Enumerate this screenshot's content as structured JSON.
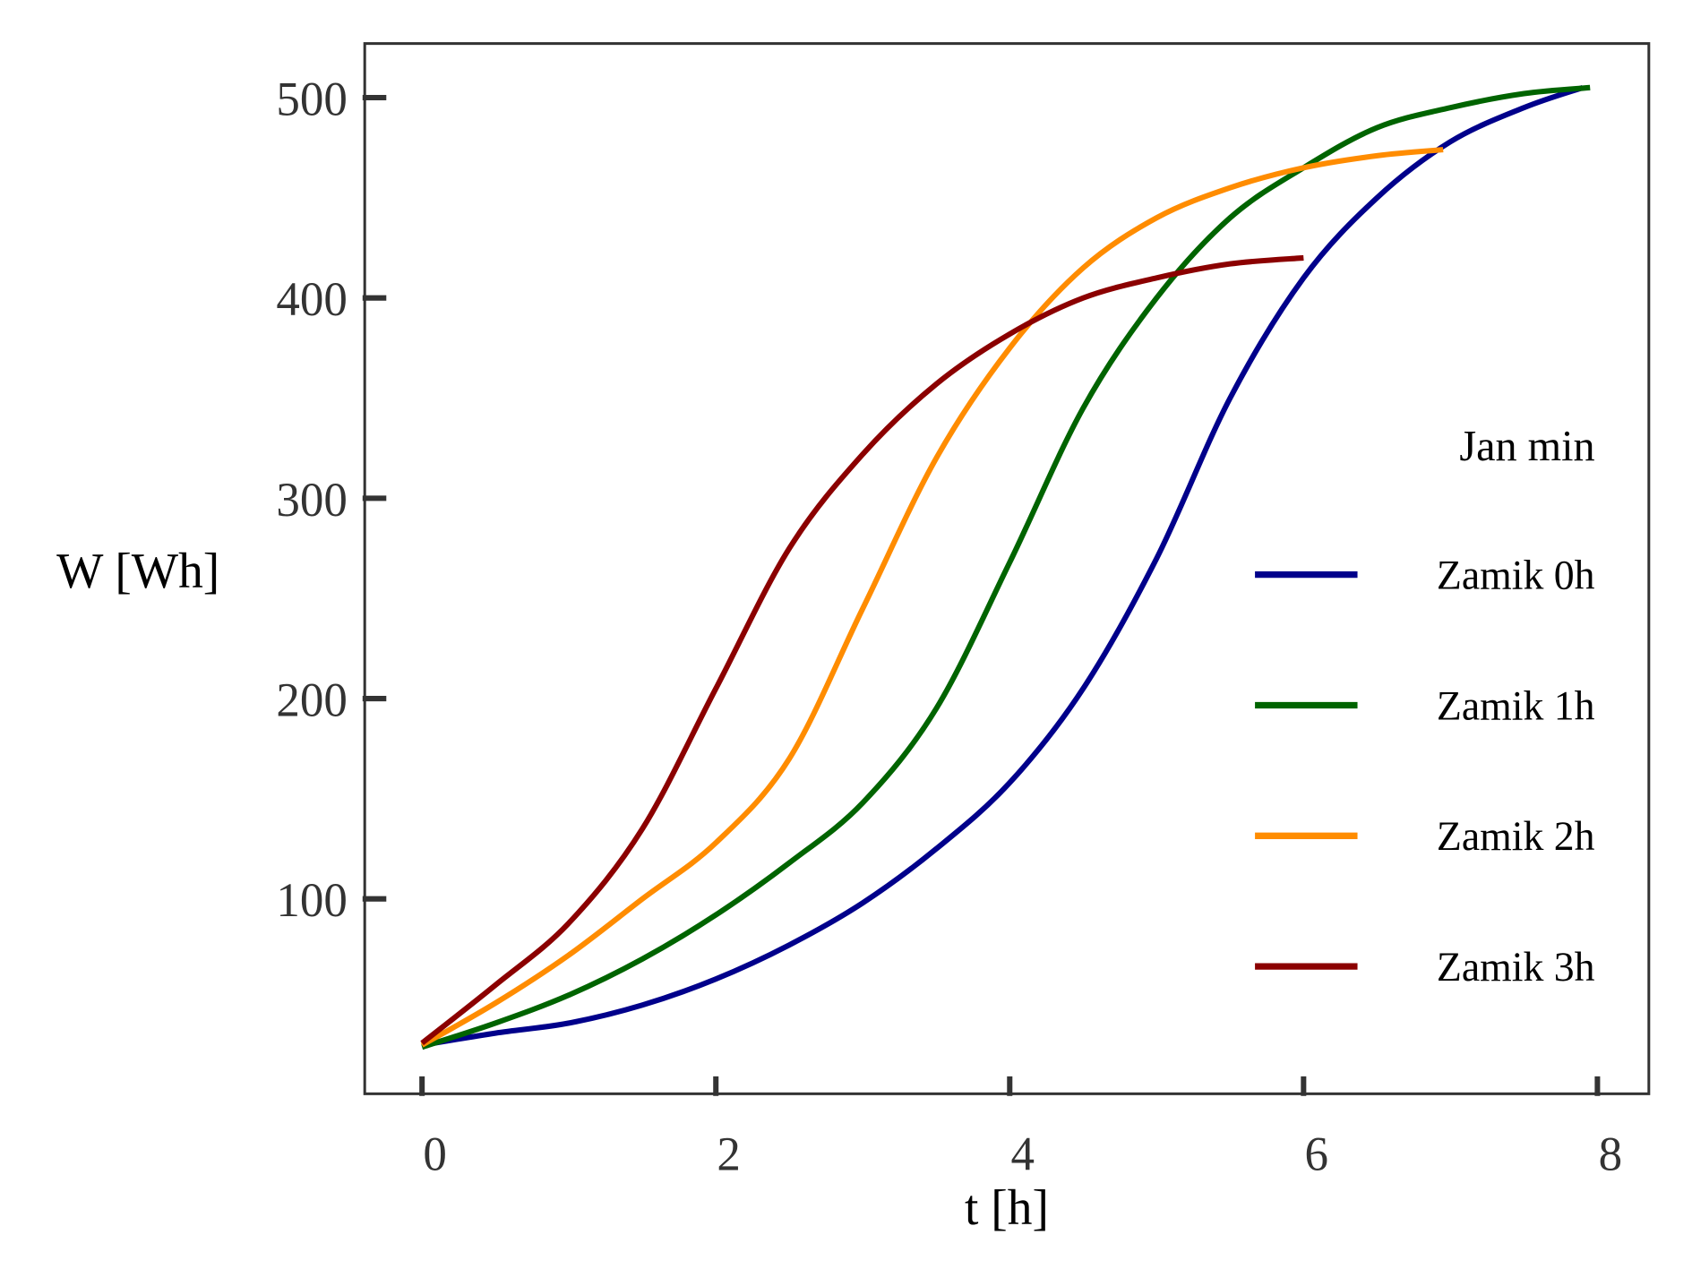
{
  "chart_data": {
    "type": "line",
    "title": "",
    "xlabel": "t [h]",
    "ylabel": "W [Wh]",
    "xlim": [
      -0.39,
      8.35
    ],
    "ylim": [
      2.7,
      527
    ],
    "xticks": [
      0,
      2,
      4,
      6,
      8
    ],
    "yticks": [
      100,
      200,
      300,
      400,
      500
    ],
    "grid": false,
    "legend": {
      "title": "Jan min",
      "placement": "right"
    },
    "series": [
      {
        "name": "Zamik 0h",
        "color": "#00008b",
        "x": [
          0,
          0.5,
          1,
          1.5,
          2,
          2.5,
          3,
          3.5,
          4,
          4.5,
          5,
          5.5,
          6,
          6.5,
          7,
          7.5,
          7.9
        ],
        "y": [
          27,
          33,
          38,
          47,
          60,
          77,
          98,
          125,
          158,
          205,
          270,
          350,
          410,
          450,
          478,
          495,
          505
        ]
      },
      {
        "name": "Zamik 1h",
        "color": "#006400",
        "x": [
          0,
          0.5,
          1,
          1.5,
          2,
          2.5,
          3,
          3.5,
          4,
          4.5,
          5,
          5.5,
          6,
          6.5,
          7,
          7.5,
          7.95
        ],
        "y": [
          26,
          38,
          52,
          70,
          92,
          118,
          148,
          195,
          268,
          345,
          400,
          440,
          465,
          485,
          495,
          502,
          505
        ]
      },
      {
        "name": "Zamik 2h",
        "color": "#ff8c00",
        "x": [
          0,
          0.5,
          1,
          1.5,
          2,
          2.5,
          3,
          3.5,
          4,
          4.5,
          5,
          5.5,
          6,
          6.5,
          6.95
        ],
        "y": [
          27,
          48,
          72,
          100,
          128,
          170,
          245,
          320,
          375,
          415,
          440,
          455,
          465,
          471,
          474
        ]
      },
      {
        "name": "Zamik 3h",
        "color": "#8b0000",
        "x": [
          0,
          0.5,
          1,
          1.5,
          2,
          2.5,
          3,
          3.5,
          4,
          4.5,
          5,
          5.5,
          6
        ],
        "y": [
          28,
          57,
          88,
          135,
          205,
          275,
          322,
          357,
          382,
          400,
          410,
          417,
          420
        ]
      }
    ]
  }
}
